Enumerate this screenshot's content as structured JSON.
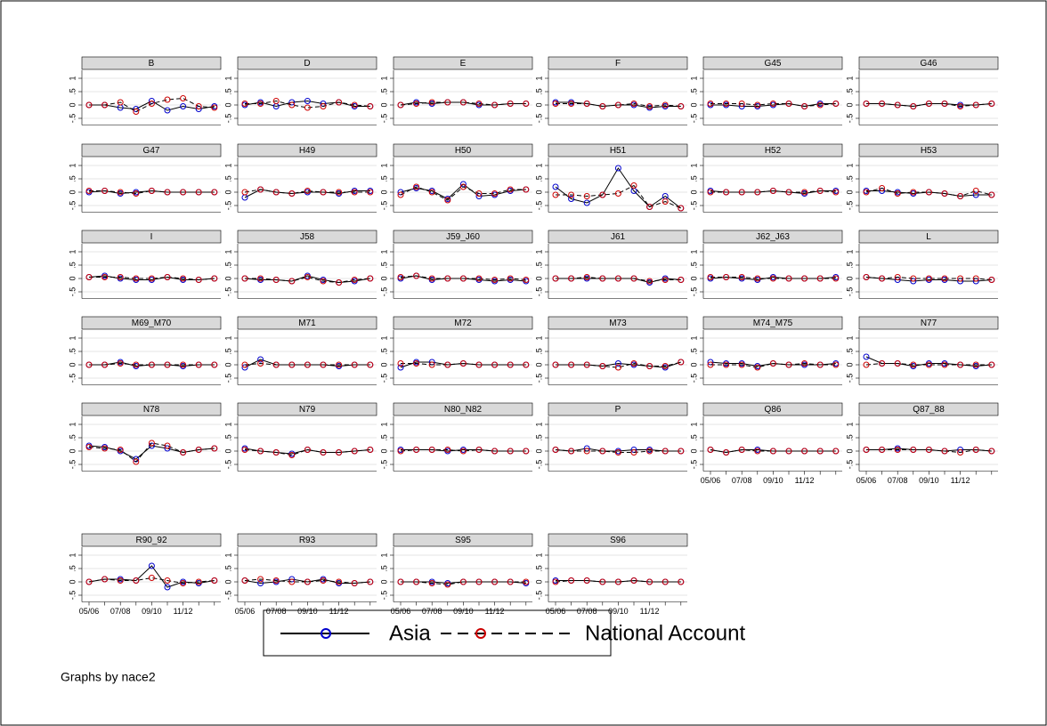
{
  "chart_data": {
    "type": "line",
    "categories": [
      "05/06",
      null,
      "07/08",
      null,
      "09/10",
      null,
      "11/12",
      null,
      null
    ],
    "ylim": [
      -0.75,
      1.3
    ],
    "yticks": [
      {
        "value": -0.5,
        "label": "-.5"
      },
      0,
      {
        "value": 0.5,
        "label": ".5"
      },
      1
    ],
    "grid": true,
    "series": [
      {
        "name": "Asia",
        "color": "#0000cc",
        "style": "solid"
      },
      {
        "name": "National Account",
        "color": "#cc0000",
        "style": "dashed"
      }
    ],
    "note": "Graphs by nace2",
    "panels": [
      {
        "title": "B",
        "series": [
          {
            "values": [
              0,
              0,
              -0.1,
              -0.15,
              0.15,
              -0.2,
              -0.05,
              -0.15,
              -0.05
            ]
          },
          {
            "values": [
              0,
              0,
              0.1,
              -0.25,
              0.05,
              0.2,
              0.25,
              -0.05,
              -0.1
            ]
          }
        ]
      },
      {
        "title": "D",
        "series": [
          {
            "values": [
              0,
              0.1,
              -0.05,
              0.1,
              0.15,
              0.05,
              0.1,
              -0.05,
              -0.05
            ]
          },
          {
            "values": [
              0.05,
              0.05,
              0.15,
              0,
              -0.1,
              -0.05,
              0.1,
              0,
              -0.05
            ]
          }
        ]
      },
      {
        "title": "E",
        "series": [
          {
            "values": [
              0,
              0.1,
              0.05,
              0.1,
              0.1,
              0,
              0,
              0.05,
              0.05
            ]
          },
          {
            "values": [
              0,
              0.05,
              0.1,
              0.1,
              0.1,
              0.05,
              0,
              0.05,
              0.05
            ]
          }
        ]
      },
      {
        "title": "F",
        "series": [
          {
            "values": [
              0.1,
              0.1,
              0.05,
              -0.05,
              0,
              0,
              -0.1,
              -0.05,
              -0.05
            ]
          },
          {
            "values": [
              0.05,
              0.05,
              0.05,
              -0.05,
              0,
              0.05,
              -0.05,
              0,
              -0.05
            ]
          }
        ]
      },
      {
        "title": "G45",
        "series": [
          {
            "values": [
              0,
              0,
              -0.05,
              -0.05,
              0,
              0.05,
              -0.05,
              0.05,
              0.05
            ]
          },
          {
            "values": [
              0.05,
              0.05,
              0.05,
              0,
              0.05,
              0.05,
              -0.05,
              0,
              0.05
            ]
          }
        ]
      },
      {
        "title": "G46",
        "series": [
          {
            "values": [
              0.05,
              0.05,
              0,
              -0.05,
              0.05,
              0.05,
              0,
              0,
              0.05
            ]
          },
          {
            "values": [
              0.05,
              0.05,
              0,
              -0.05,
              0.05,
              0.05,
              -0.05,
              0,
              0.05
            ]
          }
        ]
      },
      {
        "title": "G47",
        "series": [
          {
            "values": [
              0,
              0.05,
              -0.05,
              0,
              0.05,
              0,
              0,
              0,
              0
            ]
          },
          {
            "values": [
              0.05,
              0.05,
              0,
              -0.05,
              0.05,
              0,
              0,
              0,
              0
            ]
          }
        ]
      },
      {
        "title": "H49",
        "series": [
          {
            "values": [
              -0.2,
              0.1,
              0,
              -0.05,
              0,
              0,
              -0.05,
              0.05,
              0.05
            ]
          },
          {
            "values": [
              0,
              0.1,
              0,
              -0.05,
              0.05,
              0,
              0,
              0,
              0
            ]
          }
        ]
      },
      {
        "title": "H50",
        "series": [
          {
            "values": [
              0,
              0.15,
              0.05,
              -0.25,
              0.3,
              -0.15,
              -0.1,
              0.05,
              0.1
            ]
          },
          {
            "values": [
              -0.1,
              0.2,
              0,
              -0.3,
              0.2,
              -0.05,
              -0.05,
              0.1,
              0.1
            ]
          }
        ]
      },
      {
        "title": "H51",
        "series": [
          {
            "values": [
              0.2,
              -0.25,
              -0.4,
              -0.1,
              0.9,
              0.05,
              -0.55,
              -0.15,
              -0.6
            ]
          },
          {
            "values": [
              -0.1,
              -0.1,
              -0.15,
              -0.1,
              -0.05,
              0.25,
              -0.55,
              -0.35,
              -0.6
            ]
          }
        ]
      },
      {
        "title": "H52",
        "series": [
          {
            "values": [
              0.05,
              0,
              0,
              0,
              0.05,
              0,
              -0.05,
              0.05,
              0.05
            ]
          },
          {
            "values": [
              0,
              0,
              0,
              0,
              0.05,
              0,
              0,
              0.05,
              0
            ]
          }
        ]
      },
      {
        "title": "H53",
        "series": [
          {
            "values": [
              0.05,
              0.05,
              0,
              -0.05,
              0,
              -0.05,
              -0.15,
              -0.1,
              -0.1
            ]
          },
          {
            "values": [
              0,
              0.15,
              -0.05,
              0,
              0,
              -0.05,
              -0.15,
              0.05,
              -0.1
            ]
          }
        ]
      },
      {
        "title": "I",
        "series": [
          {
            "values": [
              0.05,
              0.1,
              0,
              -0.05,
              -0.05,
              0.05,
              -0.05,
              -0.05,
              0
            ]
          },
          {
            "values": [
              0.05,
              0.05,
              0.05,
              0,
              0,
              0.05,
              0,
              -0.05,
              0
            ]
          }
        ]
      },
      {
        "title": "J58",
        "series": [
          {
            "values": [
              0,
              -0.05,
              -0.05,
              -0.1,
              0.1,
              -0.05,
              -0.15,
              -0.1,
              0
            ]
          },
          {
            "values": [
              0,
              0,
              -0.05,
              -0.1,
              0.05,
              -0.1,
              -0.15,
              -0.05,
              0
            ]
          }
        ]
      },
      {
        "title": "J59_J60",
        "series": [
          {
            "values": [
              0,
              0.1,
              -0.05,
              0,
              0,
              -0.05,
              -0.1,
              -0.05,
              -0.1
            ]
          },
          {
            "values": [
              0.05,
              0.1,
              0,
              0,
              0,
              0,
              -0.05,
              0,
              -0.05
            ]
          }
        ]
      },
      {
        "title": "J61",
        "series": [
          {
            "values": [
              0,
              0,
              0,
              0,
              0,
              0,
              -0.15,
              0,
              -0.05
            ]
          },
          {
            "values": [
              0,
              0,
              0.05,
              0,
              0,
              0,
              -0.1,
              -0.05,
              -0.05
            ]
          }
        ]
      },
      {
        "title": "J62_J63",
        "series": [
          {
            "values": [
              0,
              0.05,
              0,
              -0.05,
              0.05,
              0,
              0,
              0,
              0.05
            ]
          },
          {
            "values": [
              0.05,
              0.05,
              0.05,
              0,
              0,
              0,
              0,
              0,
              0
            ]
          }
        ]
      },
      {
        "title": "L",
        "series": [
          {
            "values": [
              0.05,
              0,
              -0.05,
              -0.1,
              -0.05,
              -0.05,
              -0.1,
              -0.1,
              -0.05
            ]
          },
          {
            "values": [
              0.05,
              0,
              0.05,
              0,
              0,
              0,
              0,
              0,
              -0.05
            ]
          }
        ]
      },
      {
        "title": "M69_M70",
        "series": [
          {
            "values": [
              0,
              0,
              0.1,
              -0.05,
              0,
              0,
              -0.05,
              0,
              0
            ]
          },
          {
            "values": [
              0,
              0,
              0.05,
              0,
              0,
              0,
              0,
              0,
              0
            ]
          }
        ]
      },
      {
        "title": "M71",
        "series": [
          {
            "values": [
              -0.1,
              0.2,
              0,
              0,
              0,
              0,
              -0.05,
              0,
              0
            ]
          },
          {
            "values": [
              0,
              0.05,
              0,
              0,
              0,
              0,
              0,
              0,
              0
            ]
          }
        ]
      },
      {
        "title": "M72",
        "series": [
          {
            "values": [
              -0.1,
              0.1,
              0.1,
              0,
              0.05,
              0,
              0,
              0,
              0
            ]
          },
          {
            "values": [
              0.05,
              0.05,
              0,
              0,
              0.05,
              0,
              0,
              0,
              0
            ]
          }
        ]
      },
      {
        "title": "M73",
        "series": [
          {
            "values": [
              0,
              0,
              0,
              -0.05,
              0.05,
              0,
              -0.05,
              -0.1,
              0.1
            ]
          },
          {
            "values": [
              0,
              0,
              0,
              -0.05,
              -0.1,
              0.05,
              -0.05,
              -0.05,
              0.1
            ]
          }
        ]
      },
      {
        "title": "M74_M75",
        "series": [
          {
            "values": [
              0.1,
              0.05,
              0.05,
              -0.05,
              0.05,
              0,
              0,
              0,
              0.05
            ]
          },
          {
            "values": [
              0,
              0,
              0,
              -0.1,
              0.05,
              0,
              0.05,
              0,
              0
            ]
          }
        ]
      },
      {
        "title": "N77",
        "series": [
          {
            "values": [
              0.3,
              0.05,
              0.05,
              -0.05,
              0.05,
              0.05,
              0,
              -0.05,
              0
            ]
          },
          {
            "values": [
              0,
              0.05,
              0.05,
              0,
              0,
              0,
              0,
              0,
              0
            ]
          }
        ]
      },
      {
        "title": "N78",
        "series": [
          {
            "values": [
              0.2,
              0.15,
              0,
              -0.3,
              0.2,
              0.1,
              -0.05,
              0.05,
              0.1
            ]
          },
          {
            "values": [
              0.15,
              0.1,
              0.05,
              -0.4,
              0.3,
              0.2,
              -0.05,
              0.05,
              0.1
            ]
          }
        ]
      },
      {
        "title": "N79",
        "series": [
          {
            "values": [
              0.1,
              0,
              -0.05,
              -0.1,
              0.05,
              -0.05,
              -0.05,
              0,
              0.05
            ]
          },
          {
            "values": [
              0.05,
              0,
              -0.05,
              -0.15,
              0.05,
              -0.05,
              -0.05,
              0,
              0.05
            ]
          }
        ]
      },
      {
        "title": "N80_N82",
        "series": [
          {
            "values": [
              0.05,
              0.05,
              0.05,
              0,
              0.05,
              0.05,
              0,
              0,
              0
            ]
          },
          {
            "values": [
              0,
              0.05,
              0.05,
              0.05,
              0,
              0.05,
              0,
              0,
              0
            ]
          }
        ]
      },
      {
        "title": "P",
        "series": [
          {
            "values": [
              0.05,
              0,
              0.1,
              0,
              0,
              0.05,
              0.05,
              0,
              0
            ]
          },
          {
            "values": [
              0.05,
              0,
              0,
              0,
              -0.05,
              -0.05,
              0,
              0,
              0
            ]
          }
        ]
      },
      {
        "title": "Q86",
        "series": [
          {
            "values": [
              0.05,
              -0.05,
              0.05,
              0.05,
              0,
              0,
              0,
              0,
              0
            ]
          },
          {
            "values": [
              0.05,
              -0.05,
              0.05,
              0,
              0,
              0,
              0,
              0,
              0
            ]
          }
        ]
      },
      {
        "title": "Q87_88",
        "series": [
          {
            "values": [
              0.05,
              0.05,
              0.1,
              0.05,
              0.05,
              0,
              0.05,
              0.05,
              0
            ]
          },
          {
            "values": [
              0.05,
              0.05,
              0.05,
              0.05,
              0.05,
              0,
              -0.05,
              0.05,
              0
            ]
          }
        ]
      },
      {
        "title": "R90_92",
        "series": [
          {
            "values": [
              0,
              0.1,
              0.1,
              0.05,
              0.6,
              -0.2,
              0,
              -0.05,
              0.05
            ]
          },
          {
            "values": [
              0,
              0.1,
              0.05,
              0.05,
              0.15,
              0.05,
              -0.05,
              0,
              0.05
            ]
          }
        ]
      },
      {
        "title": "R93",
        "series": [
          {
            "values": [
              0.05,
              -0.05,
              0,
              0.1,
              0,
              0.1,
              -0.05,
              -0.05,
              0
            ]
          },
          {
            "values": [
              0.05,
              0.1,
              0.05,
              0,
              0,
              0.05,
              0,
              -0.05,
              0
            ]
          }
        ]
      },
      {
        "title": "S95",
        "series": [
          {
            "values": [
              0,
              0,
              0,
              -0.05,
              0,
              0,
              0,
              0,
              -0.05
            ]
          },
          {
            "values": [
              0,
              0,
              -0.05,
              -0.1,
              0,
              0,
              0,
              0,
              0
            ]
          }
        ]
      },
      {
        "title": "S96",
        "series": [
          {
            "values": [
              0.05,
              0.05,
              0.05,
              0,
              0,
              0.05,
              0,
              0,
              0
            ]
          },
          {
            "values": [
              0,
              0.05,
              0.05,
              0,
              0,
              0.05,
              0,
              0,
              0
            ]
          }
        ]
      }
    ]
  }
}
